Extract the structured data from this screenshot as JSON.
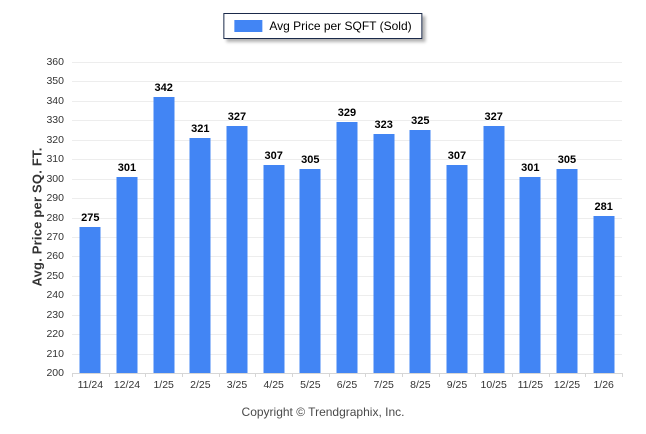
{
  "legend": {
    "label": "Avg Price per SQFT (Sold)"
  },
  "footer": {
    "text": "Copyright © Trendgraphix, Inc."
  },
  "colors": {
    "bar": "#4285f4",
    "grid": "#ededed",
    "axis": "#d6d6d6",
    "label": "#333333",
    "footer": "#4a4a4a",
    "legend_border": "#1b2a4a"
  },
  "chart_data": {
    "type": "bar",
    "title": "",
    "xlabel": "",
    "ylabel": "Avg. Price per SQ. FT.",
    "series_name": "Avg Price per SQFT (Sold)",
    "categories": [
      "11/24",
      "12/24",
      "1/25",
      "2/25",
      "3/25",
      "4/25",
      "5/25",
      "6/25",
      "7/25",
      "8/25",
      "9/25",
      "10/25",
      "11/25",
      "12/25",
      "1/26"
    ],
    "values": [
      275,
      301,
      342,
      321,
      327,
      307,
      305,
      329,
      323,
      325,
      307,
      327,
      301,
      305,
      281
    ],
    "ylim": [
      200,
      360
    ],
    "ytick_step": 10,
    "grid": true,
    "legend_position": "top-center",
    "value_labels": true
  }
}
